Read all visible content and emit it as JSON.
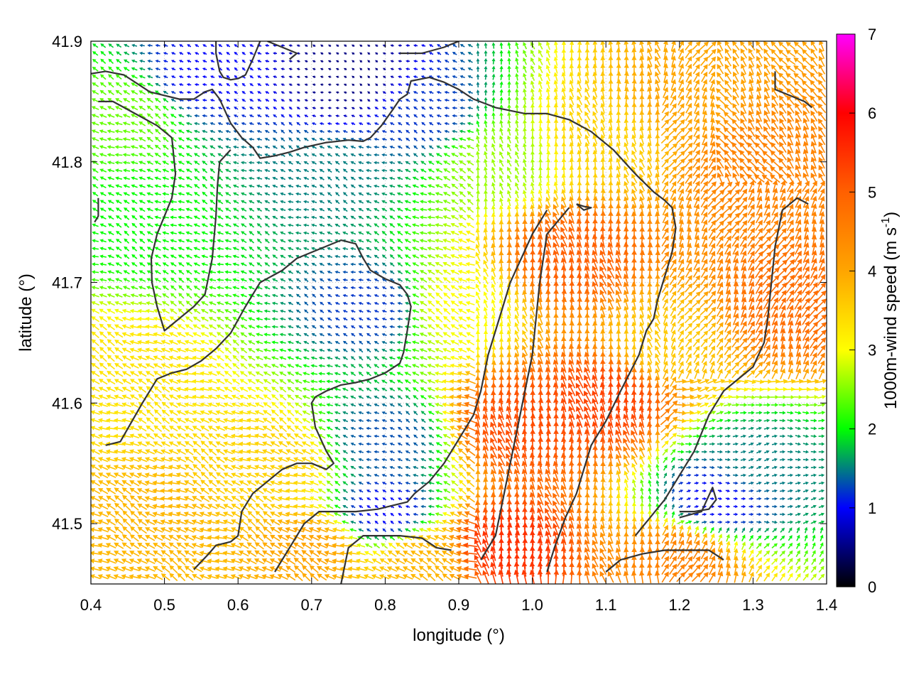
{
  "chart_data": {
    "type": "vector-field",
    "title": "",
    "xlabel": "longitude (°)",
    "ylabel": "latitude (°)",
    "colorbar_label_main": "1000m-wind speed (m s",
    "colorbar_label_sup": "-1",
    "colorbar_label_close": ")",
    "xlim": [
      0.4,
      1.4
    ],
    "ylim": [
      41.45,
      41.9
    ],
    "x_ticks": [
      0.4,
      0.5,
      0.6,
      0.7,
      0.8,
      0.9,
      1.0,
      1.1,
      1.2,
      1.3,
      1.4
    ],
    "x_tick_labels": [
      "0.4",
      "0.5",
      "0.6",
      "0.7",
      "0.8",
      "0.9",
      "1.0",
      "1.1",
      "1.2",
      "1.3",
      "1.4"
    ],
    "y_ticks": [
      41.5,
      41.6,
      41.7,
      41.8,
      41.9
    ],
    "y_tick_labels": [
      "41.5",
      "41.6",
      "41.7",
      "41.8",
      "41.9"
    ],
    "colorbar_range": [
      0,
      7
    ],
    "colorbar_ticks": [
      0,
      1,
      2,
      3,
      4,
      5,
      6,
      7
    ],
    "colorbar_tick_labels": [
      "0",
      "1",
      "2",
      "3",
      "4",
      "5",
      "6",
      "7"
    ],
    "colorbar_colors": [
      "#000000",
      "#0000ff",
      "#00ff00",
      "#ffff00",
      "#ffa500",
      "#ff6000",
      "#ff0000",
      "#ff00ff"
    ],
    "grid": true,
    "speed_regions": [
      {
        "lon": 0.55,
        "lat": 41.87,
        "speed": 1.0
      },
      {
        "lon": 0.75,
        "lat": 41.87,
        "speed": 0.5
      },
      {
        "lon": 0.85,
        "lat": 41.84,
        "speed": 1.2
      },
      {
        "lon": 0.72,
        "lat": 41.79,
        "speed": 1.5
      },
      {
        "lon": 0.78,
        "lat": 41.68,
        "speed": 1.2
      },
      {
        "lon": 0.8,
        "lat": 41.57,
        "speed": 1.3
      },
      {
        "lon": 0.8,
        "lat": 41.51,
        "speed": 1.0
      },
      {
        "lon": 0.48,
        "lat": 41.75,
        "speed": 2.0
      },
      {
        "lon": 0.45,
        "lat": 41.84,
        "speed": 2.4
      },
      {
        "lon": 0.45,
        "lat": 41.62,
        "speed": 3.3
      },
      {
        "lon": 0.48,
        "lat": 41.5,
        "speed": 3.8
      },
      {
        "lon": 0.65,
        "lat": 41.55,
        "speed": 3.5
      },
      {
        "lon": 0.7,
        "lat": 41.48,
        "speed": 4.0
      },
      {
        "lon": 0.9,
        "lat": 41.68,
        "speed": 3.0
      },
      {
        "lon": 0.95,
        "lat": 41.8,
        "speed": 2.6
      },
      {
        "lon": 1.1,
        "lat": 41.82,
        "speed": 3.5
      },
      {
        "lon": 1.2,
        "lat": 41.85,
        "speed": 4.0
      },
      {
        "lon": 1.3,
        "lat": 41.8,
        "speed": 4.5
      },
      {
        "lon": 1.05,
        "lat": 41.72,
        "speed": 5.0
      },
      {
        "lon": 0.98,
        "lat": 41.58,
        "speed": 5.2
      },
      {
        "lon": 0.96,
        "lat": 41.48,
        "speed": 5.5
      },
      {
        "lon": 1.1,
        "lat": 41.6,
        "speed": 5.3
      },
      {
        "lon": 1.18,
        "lat": 41.65,
        "speed": 3.6
      },
      {
        "lon": 1.3,
        "lat": 41.55,
        "speed": 1.5
      },
      {
        "lon": 1.25,
        "lat": 41.52,
        "speed": 1.0
      },
      {
        "lon": 1.2,
        "lat": 41.47,
        "speed": 4.5
      },
      {
        "lon": 1.35,
        "lat": 41.68,
        "speed": 4.8
      },
      {
        "lon": 0.85,
        "lat": 41.47,
        "speed": 3.8
      }
    ],
    "contours": [
      [
        [
          0.4,
          41.873
        ],
        [
          0.42,
          41.875
        ],
        [
          0.445,
          41.872
        ],
        [
          0.465,
          41.864
        ],
        [
          0.48,
          41.858
        ],
        [
          0.5,
          41.855
        ],
        [
          0.52,
          41.852
        ],
        [
          0.54,
          41.852
        ],
        [
          0.555,
          41.858
        ],
        [
          0.565,
          41.86
        ],
        [
          0.575,
          41.852
        ],
        [
          0.59,
          41.832
        ],
        [
          0.605,
          41.82
        ],
        [
          0.62,
          41.812
        ],
        [
          0.63,
          41.803
        ],
        [
          0.65,
          41.805
        ],
        [
          0.67,
          41.808
        ],
        [
          0.69,
          41.812
        ],
        [
          0.72,
          41.816
        ],
        [
          0.75,
          41.818
        ],
        [
          0.77,
          41.817
        ],
        [
          0.78,
          41.82
        ],
        [
          0.795,
          41.83
        ],
        [
          0.81,
          41.843
        ],
        [
          0.82,
          41.852
        ],
        [
          0.83,
          41.856
        ],
        [
          0.835,
          41.867
        ],
        [
          0.86,
          41.87
        ],
        [
          0.88,
          41.866
        ],
        [
          0.9,
          41.86
        ],
        [
          0.92,
          41.852
        ],
        [
          0.95,
          41.845
        ],
        [
          0.99,
          41.84
        ],
        [
          1.02,
          41.84
        ],
        [
          1.05,
          41.835
        ],
        [
          1.08,
          41.825
        ],
        [
          1.11,
          41.81
        ],
        [
          1.14,
          41.79
        ],
        [
          1.165,
          41.775
        ],
        [
          1.18,
          41.768
        ],
        [
          1.19,
          41.762
        ],
        [
          1.195,
          41.745
        ],
        [
          1.19,
          41.725
        ],
        [
          1.18,
          41.705
        ],
        [
          1.17,
          41.685
        ],
        [
          1.165,
          41.67
        ],
        [
          1.155,
          41.66
        ],
        [
          1.145,
          41.64
        ],
        [
          1.12,
          41.61
        ],
        [
          1.1,
          41.585
        ],
        [
          1.08,
          41.565
        ],
        [
          1.07,
          41.545
        ],
        [
          1.06,
          41.525
        ],
        [
          1.045,
          41.505
        ],
        [
          1.03,
          41.48
        ],
        [
          1.02,
          41.46
        ]
      ],
      [
        [
          0.41,
          41.85
        ],
        [
          0.43,
          41.85
        ],
        [
          0.46,
          41.84
        ],
        [
          0.49,
          41.83
        ],
        [
          0.51,
          41.82
        ],
        [
          0.515,
          41.79
        ],
        [
          0.51,
          41.77
        ],
        [
          0.5,
          41.755
        ],
        [
          0.49,
          41.74
        ],
        [
          0.482,
          41.72
        ],
        [
          0.483,
          41.7
        ],
        [
          0.49,
          41.68
        ],
        [
          0.5,
          41.66
        ],
        [
          0.52,
          41.67
        ],
        [
          0.54,
          41.68
        ],
        [
          0.555,
          41.69
        ],
        [
          0.565,
          41.72
        ],
        [
          0.57,
          41.755
        ],
        [
          0.572,
          41.78
        ],
        [
          0.575,
          41.8
        ],
        [
          0.59,
          41.81
        ]
      ],
      [
        [
          0.41,
          41.77
        ],
        [
          0.41,
          41.755
        ],
        [
          0.405,
          41.75
        ]
      ],
      [
        [
          0.42,
          41.565
        ],
        [
          0.44,
          41.568
        ],
        [
          0.47,
          41.6
        ],
        [
          0.49,
          41.62
        ],
        [
          0.51,
          41.625
        ],
        [
          0.53,
          41.628
        ],
        [
          0.55,
          41.635
        ],
        [
          0.57,
          41.645
        ],
        [
          0.59,
          41.658
        ],
        [
          0.61,
          41.68
        ],
        [
          0.63,
          41.7
        ],
        [
          0.66,
          41.71
        ],
        [
          0.68,
          41.72
        ],
        [
          0.7,
          41.725
        ],
        [
          0.72,
          41.73
        ],
        [
          0.74,
          41.735
        ],
        [
          0.76,
          41.732
        ],
        [
          0.77,
          41.72
        ],
        [
          0.78,
          41.71
        ],
        [
          0.8,
          41.703
        ],
        [
          0.82,
          41.698
        ],
        [
          0.83,
          41.69
        ],
        [
          0.835,
          41.68
        ],
        [
          0.83,
          41.66
        ],
        [
          0.825,
          41.642
        ],
        [
          0.82,
          41.633
        ],
        [
          0.8,
          41.625
        ],
        [
          0.78,
          41.62
        ],
        [
          0.76,
          41.617
        ],
        [
          0.74,
          41.615
        ],
        [
          0.72,
          41.61
        ],
        [
          0.705,
          41.605
        ],
        [
          0.7,
          41.6
        ],
        [
          0.705,
          41.58
        ],
        [
          0.72,
          41.56
        ],
        [
          0.73,
          41.55
        ],
        [
          0.72,
          41.545
        ],
        [
          0.7,
          41.55
        ],
        [
          0.68,
          41.55
        ],
        [
          0.66,
          41.545
        ],
        [
          0.64,
          41.535
        ],
        [
          0.62,
          41.525
        ],
        [
          0.605,
          41.51
        ],
        [
          0.6,
          41.49
        ],
        [
          0.59,
          41.485
        ],
        [
          0.57,
          41.482
        ],
        [
          0.56,
          41.475
        ],
        [
          0.54,
          41.462
        ]
      ],
      [
        [
          0.65,
          41.46
        ],
        [
          0.67,
          41.48
        ],
        [
          0.69,
          41.5
        ],
        [
          0.71,
          41.51
        ],
        [
          0.73,
          41.51
        ],
        [
          0.76,
          41.51
        ],
        [
          0.79,
          41.512
        ],
        [
          0.81,
          41.515
        ],
        [
          0.83,
          41.518
        ],
        [
          0.84,
          41.525
        ],
        [
          0.86,
          41.535
        ],
        [
          0.88,
          41.55
        ],
        [
          0.9,
          41.57
        ],
        [
          0.92,
          41.59
        ],
        [
          0.93,
          41.61
        ],
        [
          0.94,
          41.64
        ],
        [
          0.95,
          41.66
        ],
        [
          0.96,
          41.68
        ],
        [
          0.97,
          41.7
        ],
        [
          0.985,
          41.72
        ],
        [
          1.0,
          41.74
        ],
        [
          1.02,
          41.76
        ]
      ],
      [
        [
          0.74,
          41.45
        ],
        [
          0.75,
          41.48
        ],
        [
          0.77,
          41.49
        ],
        [
          0.79,
          41.49
        ],
        [
          0.82,
          41.49
        ],
        [
          0.85,
          41.488
        ],
        [
          0.87,
          41.48
        ],
        [
          0.89,
          41.478
        ]
      ],
      [
        [
          0.93,
          41.47
        ],
        [
          0.95,
          41.49
        ],
        [
          0.96,
          41.52
        ],
        [
          0.97,
          41.55
        ],
        [
          0.98,
          41.58
        ],
        [
          0.99,
          41.61
        ],
        [
          1.0,
          41.64
        ],
        [
          1.005,
          41.67
        ],
        [
          1.01,
          41.7
        ],
        [
          1.015,
          41.72
        ],
        [
          1.02,
          41.74
        ],
        [
          1.05,
          41.762
        ]
      ],
      [
        [
          1.06,
          41.765
        ],
        [
          1.07,
          41.763
        ],
        [
          1.08,
          41.762
        ],
        [
          1.07,
          41.76
        ],
        [
          1.06,
          41.765
        ]
      ],
      [
        [
          1.1,
          41.46
        ],
        [
          1.12,
          41.47
        ],
        [
          1.15,
          41.475
        ],
        [
          1.18,
          41.478
        ],
        [
          1.21,
          41.478
        ],
        [
          1.24,
          41.478
        ],
        [
          1.26,
          41.47
        ]
      ],
      [
        [
          1.14,
          41.49
        ],
        [
          1.16,
          41.505
        ],
        [
          1.18,
          41.52
        ],
        [
          1.2,
          41.54
        ],
        [
          1.22,
          41.56
        ],
        [
          1.24,
          41.59
        ],
        [
          1.26,
          41.61
        ],
        [
          1.28,
          41.62
        ],
        [
          1.3,
          41.63
        ],
        [
          1.315,
          41.65
        ],
        [
          1.32,
          41.67
        ],
        [
          1.325,
          41.7
        ],
        [
          1.33,
          41.73
        ],
        [
          1.34,
          41.76
        ],
        [
          1.36,
          41.77
        ],
        [
          1.375,
          41.765
        ]
      ],
      [
        [
          1.2,
          41.51
        ],
        [
          1.22,
          41.51
        ],
        [
          1.24,
          41.512
        ],
        [
          1.25,
          41.52
        ],
        [
          1.245,
          41.53
        ],
        [
          1.23,
          41.51
        ],
        [
          1.2,
          41.505
        ]
      ],
      [
        [
          1.33,
          41.875
        ],
        [
          1.33,
          41.86
        ],
        [
          1.35,
          41.855
        ],
        [
          1.37,
          41.85
        ],
        [
          1.38,
          41.845
        ]
      ],
      [
        [
          0.64,
          41.9
        ],
        [
          0.66,
          41.895
        ],
        [
          0.68,
          41.89
        ],
        [
          0.67,
          41.885
        ]
      ],
      [
        [
          0.38,
          41.862
        ],
        [
          0.39,
          41.873
        ],
        [
          0.4,
          41.874
        ]
      ],
      [
        [
          0.57,
          41.9
        ],
        [
          0.57,
          41.89
        ],
        [
          0.575,
          41.875
        ],
        [
          0.58,
          41.87
        ],
        [
          0.59,
          41.868
        ],
        [
          0.6,
          41.869
        ],
        [
          0.61,
          41.872
        ],
        [
          0.62,
          41.885
        ],
        [
          0.63,
          41.9
        ]
      ],
      [
        [
          0.82,
          41.89
        ],
        [
          0.85,
          41.89
        ],
        [
          0.88,
          41.895
        ],
        [
          0.9,
          41.9
        ]
      ]
    ]
  }
}
